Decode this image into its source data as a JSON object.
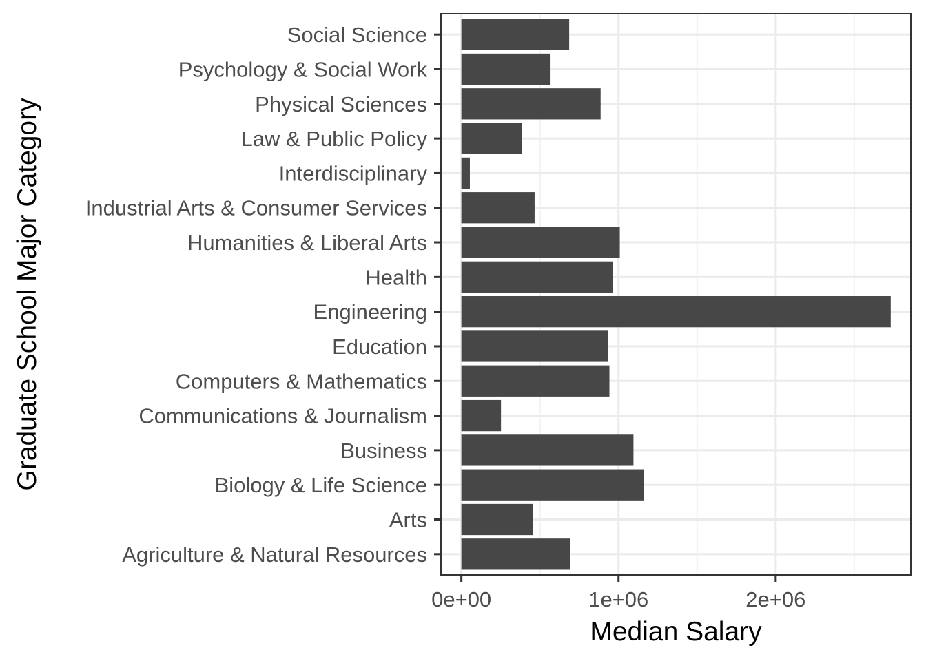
{
  "chart_data": {
    "type": "bar",
    "orientation": "horizontal",
    "title": "",
    "xlabel": "Median Salary",
    "ylabel": "Graduate School Major Category",
    "categories": [
      "Agriculture & Natural Resources",
      "Arts",
      "Biology & Life Science",
      "Business",
      "Communications & Journalism",
      "Computers & Mathematics",
      "Education",
      "Engineering",
      "Health",
      "Humanities & Liberal Arts",
      "Industrial Arts & Consumer Services",
      "Interdisciplinary",
      "Law & Public Policy",
      "Physical Sciences",
      "Psychology & Social Work",
      "Social Science"
    ],
    "values": [
      690000,
      455000,
      1160000,
      1095000,
      252000,
      942000,
      932000,
      2732000,
      962000,
      1008000,
      466000,
      54000,
      385000,
      886000,
      563000,
      686000
    ],
    "xlim": [
      -130000,
      2860000
    ],
    "xticks": [
      0,
      1000000,
      2000000
    ],
    "xtick_labels": [
      "0e+00",
      "1e+06",
      "2e+06"
    ],
    "grid": true,
    "legend": "none",
    "colors": {
      "bar": "#474747",
      "panel_border": "#333333",
      "grid_major": "#ebebeb",
      "grid_minor": "#f2f2f2",
      "tick_text": "#4d4d4d",
      "axis_title": "#000000",
      "background": "#ffffff"
    }
  }
}
